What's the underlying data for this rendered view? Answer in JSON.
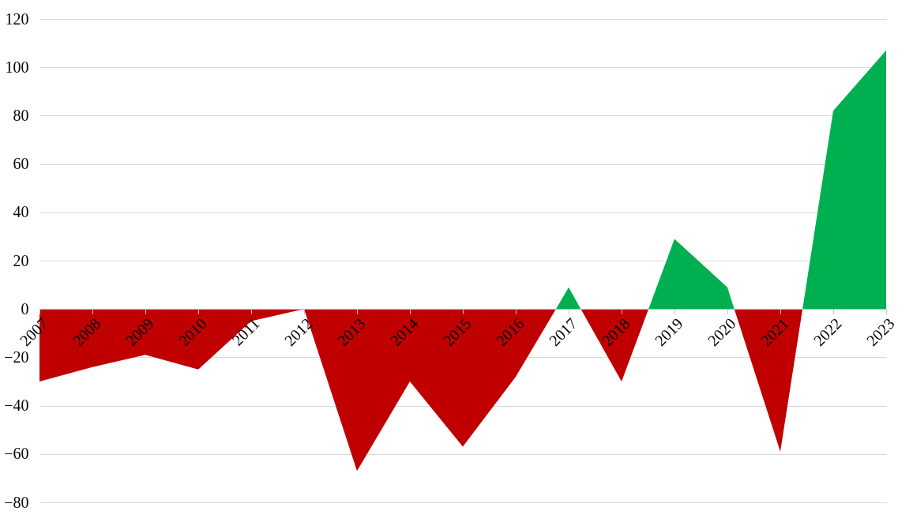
{
  "chart_data": {
    "type": "area",
    "xlim": [
      2007,
      2023
    ],
    "xticks": [
      2007,
      2008,
      2009,
      2010,
      2011,
      2012,
      2013,
      2014,
      2015,
      2016,
      2017,
      2018,
      2019,
      2020,
      2021,
      2022,
      2023
    ],
    "ylim": [
      -80,
      120
    ],
    "yticks": [
      -80,
      -60,
      -40,
      -20,
      0,
      20,
      40,
      60,
      80,
      100,
      120
    ],
    "grid": "y",
    "legend": false,
    "series": [
      {
        "color": "#c00000",
        "x": [
          2007,
          2008,
          2009,
          2010,
          2011,
          2012,
          2013,
          2014,
          2015,
          2016,
          2016.76,
          2017.23,
          2018,
          2018.51,
          2020.13,
          2021,
          2021.42
        ],
        "values": [
          -30,
          -24,
          -19,
          -25,
          -5,
          0,
          -67,
          -30,
          -57,
          -28,
          0,
          0,
          -30,
          0,
          0,
          -59,
          0
        ]
      },
      {
        "color": "#00b050",
        "x": [
          2016.76,
          2017,
          2017.23,
          2018.51,
          2019,
          2020,
          2020.13,
          2021.42,
          2022,
          2023
        ],
        "values": [
          0,
          9,
          0,
          0,
          29,
          9,
          0,
          0,
          82,
          107
        ]
      }
    ]
  }
}
